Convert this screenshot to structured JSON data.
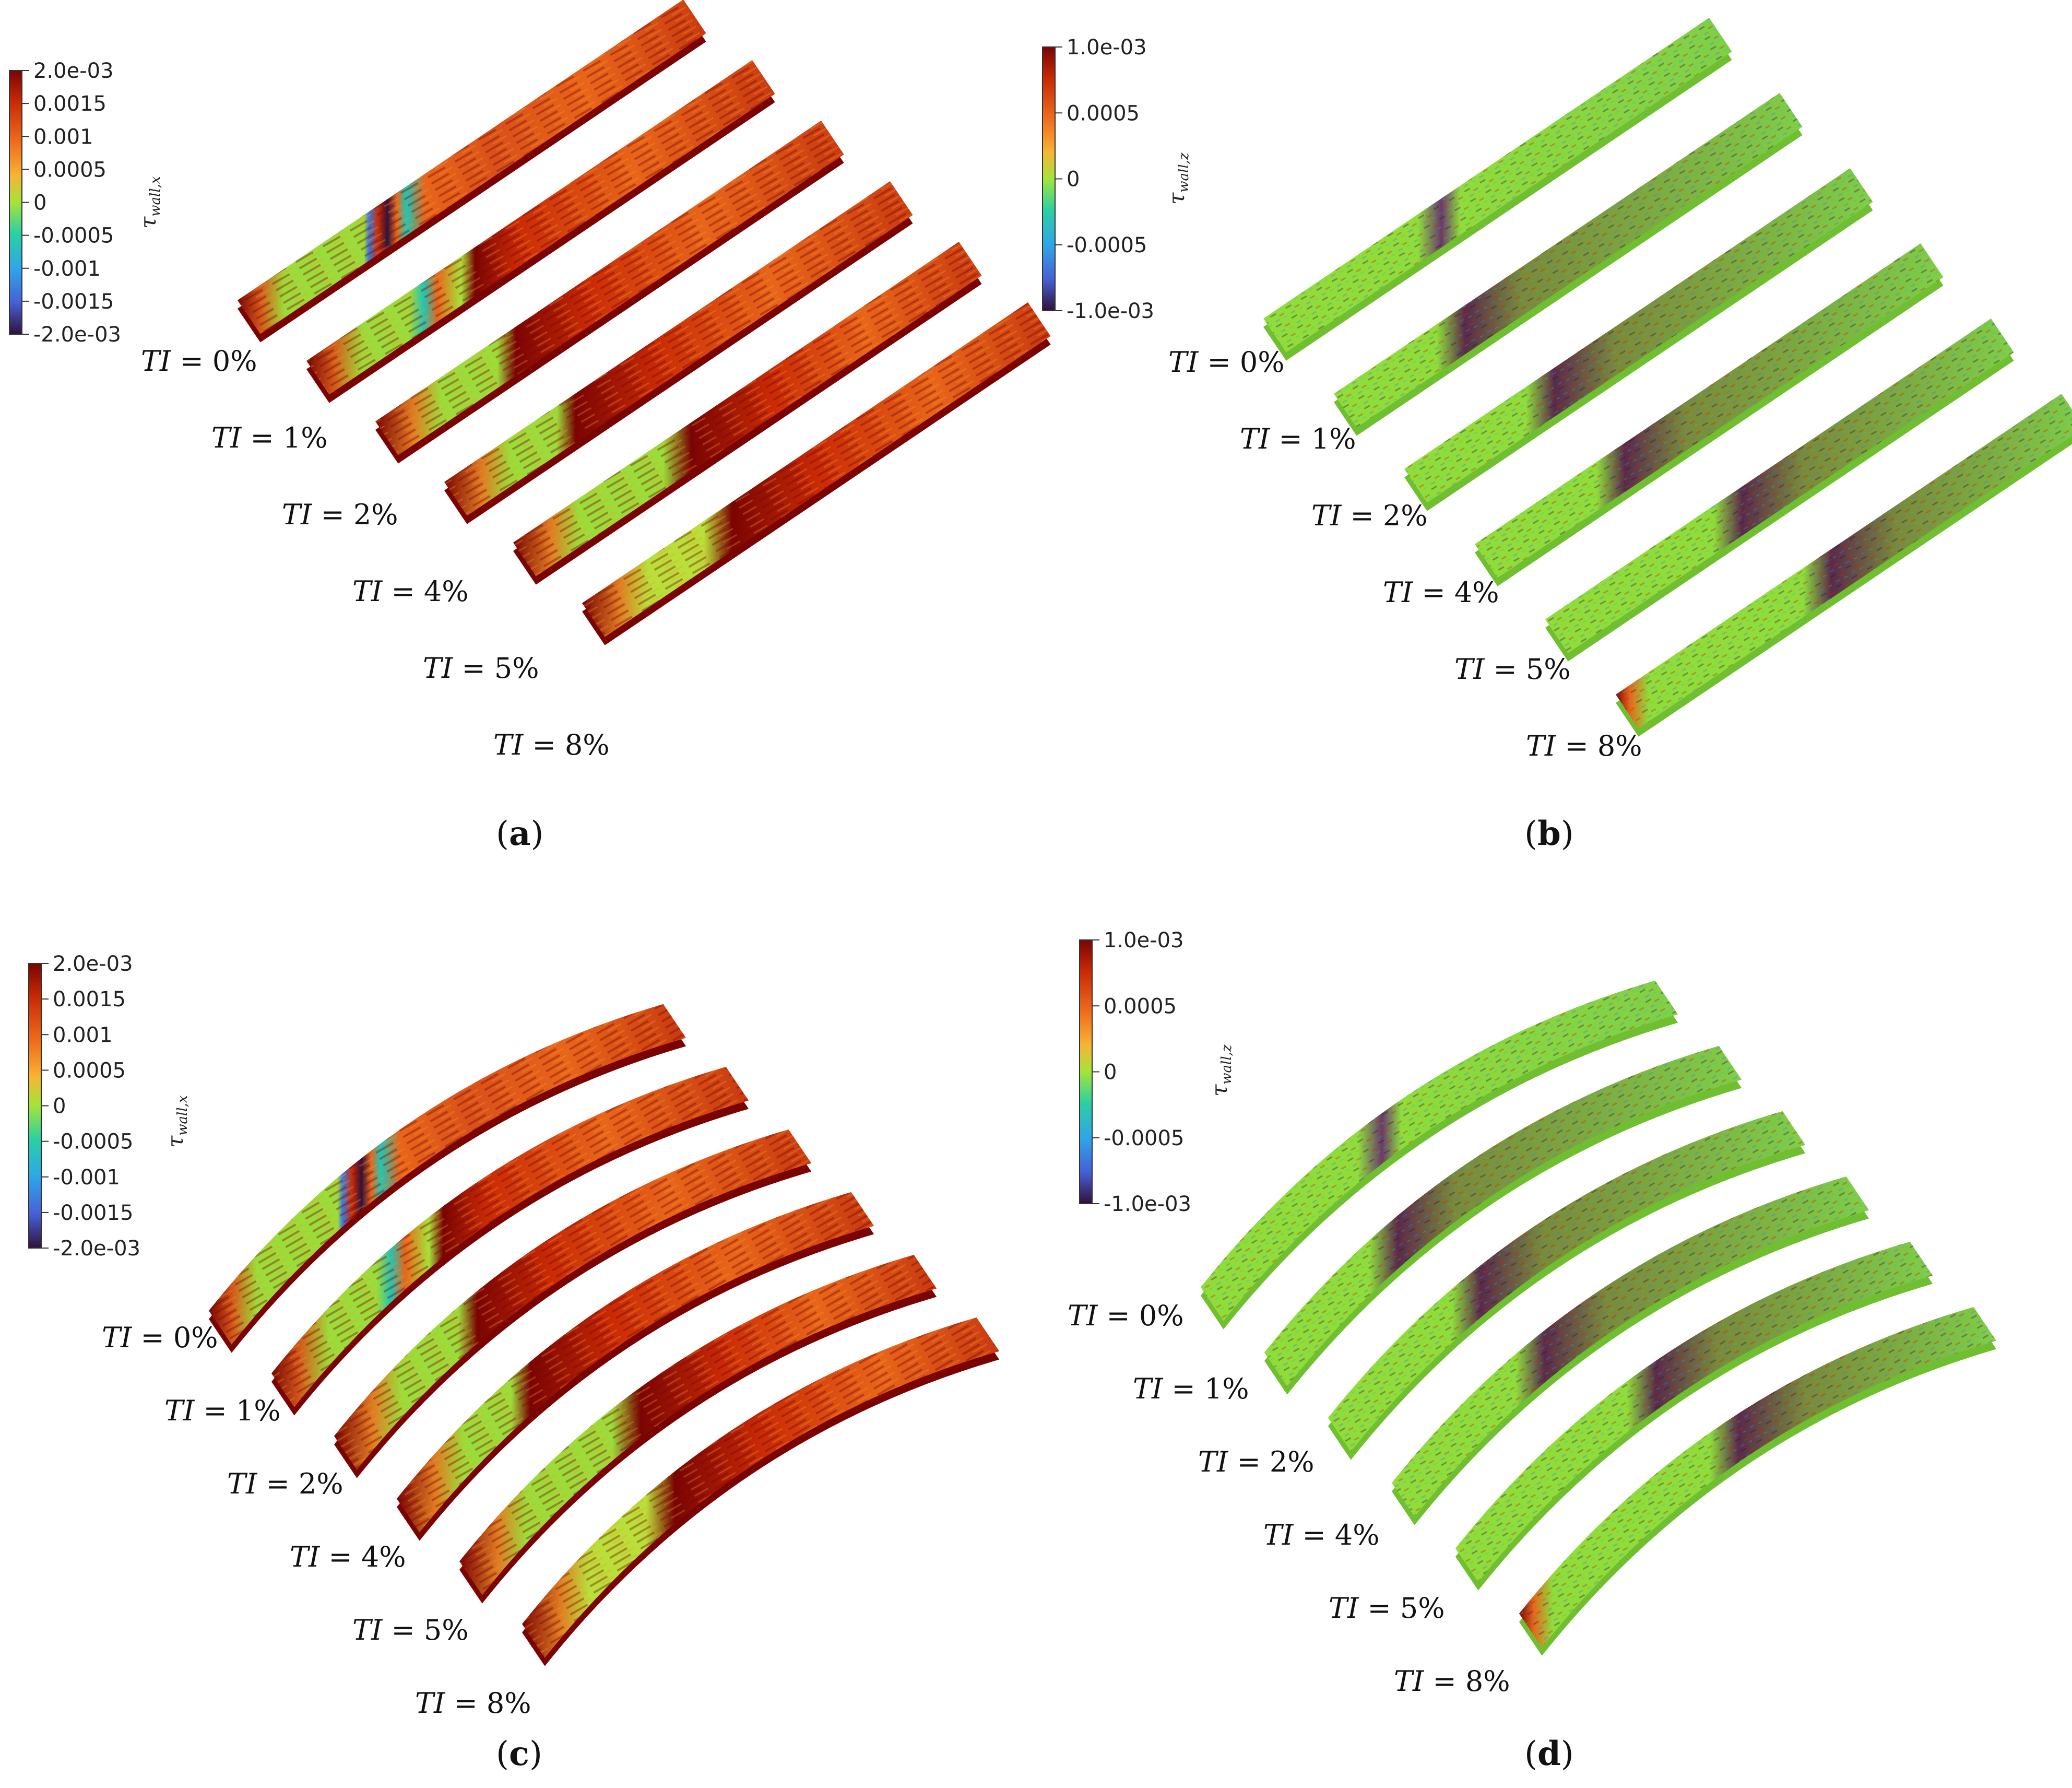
{
  "colors": {
    "dark_red": "#7a0403",
    "red": "#c92a05",
    "orange": "#e8651a",
    "orange_light": "#f59a2a",
    "yellow": "#e9d133",
    "green": "#8fdc3a",
    "cyan": "#1ec6b6",
    "blue": "#3a7be0",
    "navy": "#30123b"
  },
  "colorbars": {
    "x": {
      "title_main": "τ",
      "title_sub": "wall,x",
      "ticks": [
        "2.0e-03",
        "0.0015",
        "0.001",
        "0.0005",
        "0",
        "-0.0005",
        "-0.001",
        "-0.0015",
        "-2.0e-03"
      ]
    },
    "z": {
      "title_main": "τ",
      "title_sub": "wall,z",
      "ticks": [
        "1.0e-03",
        "0.0005",
        "0",
        "-0.0005",
        "-1.0e-03"
      ]
    }
  },
  "ti": {
    "prefix_italic": "TI",
    "eq": " = ",
    "values": [
      "0%",
      "1%",
      "2%",
      "4%",
      "5%",
      "8%"
    ]
  },
  "panels": [
    {
      "id": "a",
      "label": "a",
      "field": "wall,x",
      "shape": "flat"
    },
    {
      "id": "b",
      "label": "b",
      "field": "wall,z",
      "shape": "flat"
    },
    {
      "id": "c",
      "label": "c",
      "field": "wall,x",
      "shape": "curved"
    },
    {
      "id": "d",
      "label": "d",
      "field": "wall,z",
      "shape": "curved"
    }
  ]
}
